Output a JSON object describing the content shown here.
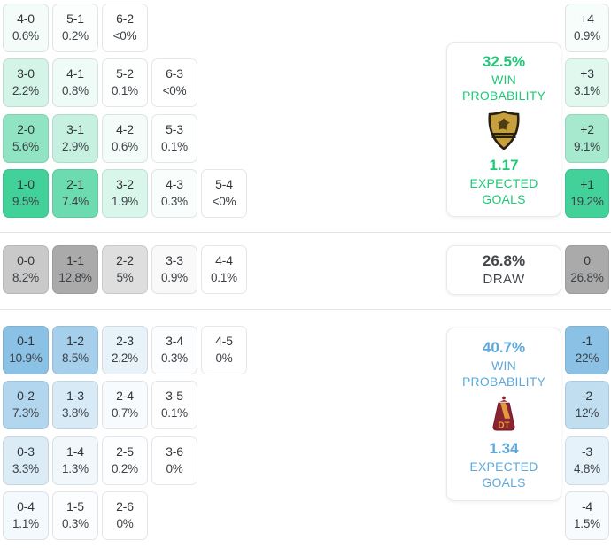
{
  "chart_data": {
    "type": "heatmap",
    "title": "Correct score probability matrix with goal-difference distribution",
    "sections": {
      "home_win": {
        "accent": "#2ecc8e",
        "win_probability": "32.5%",
        "expected_goals": "1.17",
        "team_crest": "aguilas-doradas",
        "score_rows": [
          [
            [
              "4-0",
              "0.6%"
            ],
            [
              "5-1",
              "0.2%"
            ],
            [
              "6-2",
              "<0%"
            ]
          ],
          [
            [
              "3-0",
              "2.2%"
            ],
            [
              "4-1",
              "0.8%"
            ],
            [
              "5-2",
              "0.1%"
            ],
            [
              "6-3",
              "<0%"
            ]
          ],
          [
            [
              "2-0",
              "5.6%"
            ],
            [
              "3-1",
              "2.9%"
            ],
            [
              "4-2",
              "0.6%"
            ],
            [
              "5-3",
              "0.1%"
            ]
          ],
          [
            [
              "1-0",
              "9.5%"
            ],
            [
              "2-1",
              "7.4%"
            ],
            [
              "3-2",
              "1.9%"
            ],
            [
              "4-3",
              "0.3%"
            ],
            [
              "5-4",
              "<0%"
            ]
          ]
        ],
        "margin_tiles": [
          [
            "+4",
            "0.9%"
          ],
          [
            "+3",
            "3.1%"
          ],
          [
            "+2",
            "9.1%"
          ],
          [
            "+1",
            "19.2%"
          ]
        ]
      },
      "draw": {
        "accent": "#808080",
        "probability": "26.8%",
        "score_rows": [
          [
            [
              "0-0",
              "8.2%"
            ],
            [
              "1-1",
              "12.8%"
            ],
            [
              "2-2",
              "5%"
            ],
            [
              "3-3",
              "0.9%"
            ],
            [
              "4-4",
              "0.1%"
            ]
          ]
        ],
        "margin_tiles": [
          [
            "0",
            "26.8%"
          ]
        ]
      },
      "away_win": {
        "accent": "#5aa7d8",
        "win_probability": "40.7%",
        "expected_goals": "1.34",
        "team_crest": "deportes-tolima",
        "score_rows": [
          [
            [
              "0-1",
              "10.9%"
            ],
            [
              "1-2",
              "8.5%"
            ],
            [
              "2-3",
              "2.2%"
            ],
            [
              "3-4",
              "0.3%"
            ],
            [
              "4-5",
              "0%"
            ]
          ],
          [
            [
              "0-2",
              "7.3%"
            ],
            [
              "1-3",
              "3.8%"
            ],
            [
              "2-4",
              "0.7%"
            ],
            [
              "3-5",
              "0.1%"
            ]
          ],
          [
            [
              "0-3",
              "3.3%"
            ],
            [
              "1-4",
              "1.3%"
            ],
            [
              "2-5",
              "0.2%"
            ],
            [
              "3-6",
              "0%"
            ]
          ],
          [
            [
              "0-4",
              "1.1%"
            ],
            [
              "1-5",
              "0.3%"
            ],
            [
              "2-6",
              "0%"
            ]
          ]
        ],
        "margin_tiles": [
          [
            "-1",
            "22%"
          ],
          [
            "-2",
            "12%"
          ],
          [
            "-3",
            "4.8%"
          ],
          [
            "-4",
            "1.5%"
          ]
        ]
      }
    }
  },
  "labels": {
    "win": "WIN",
    "probability": "PROBABILITY",
    "expected": "EXPECTED",
    "goals": "GOALS",
    "draw": "DRAW"
  },
  "colors": {
    "home_accent": "#2ecc8e",
    "home_card_text": "#1fc877",
    "away_accent": "#5aa7d8",
    "away_card_text": "#5ea9dc",
    "draw_accent": "#808080",
    "draw_card_text": "#42474c",
    "tile_text": "#363a3e",
    "divider": "#e4e4e4",
    "crest_gold": "#c79f3d",
    "crest_dark": "#26200f",
    "crest_maroon": "#8c2332",
    "crest_amber": "#e8a33d"
  }
}
